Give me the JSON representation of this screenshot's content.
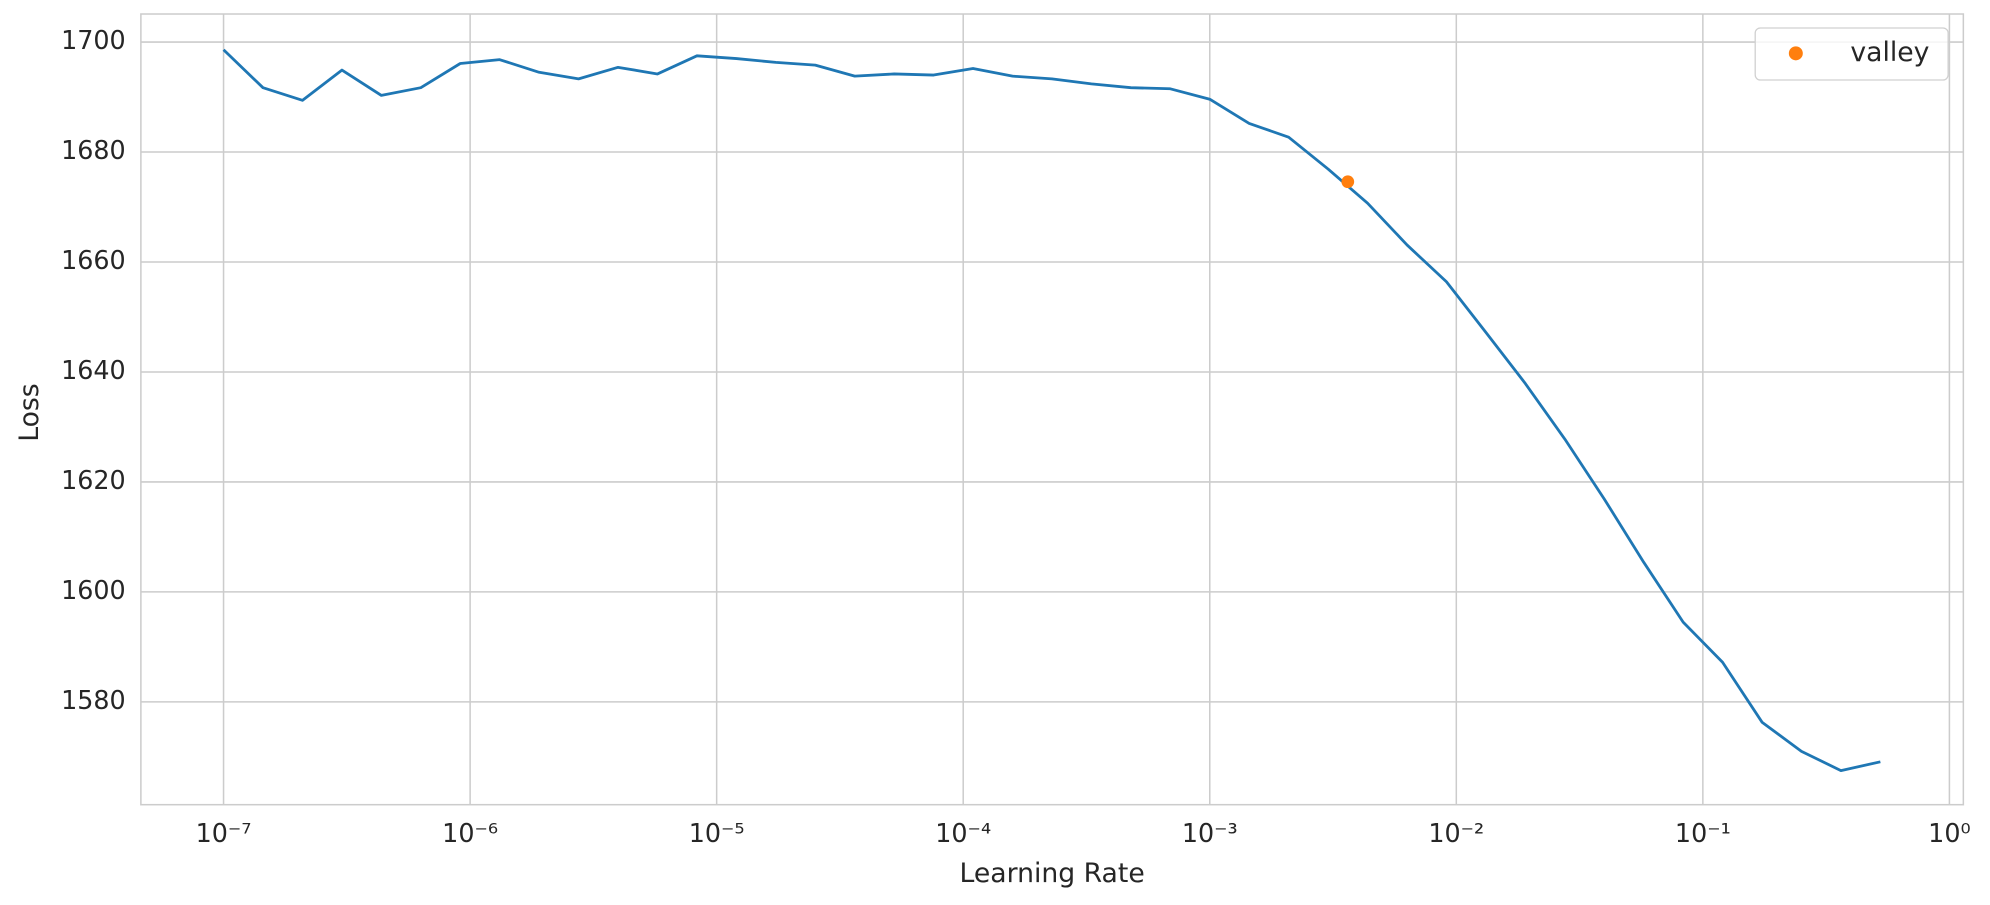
{
  "chart_data": {
    "type": "line",
    "xlabel": "Learning Rate",
    "ylabel": "Loss",
    "x": [
      1e-07,
      1.445e-07,
      2.089e-07,
      3.02e-07,
      4.365e-07,
      6.31e-07,
      9.12e-07,
      1.318e-06,
      1.905e-06,
      2.754e-06,
      3.981e-06,
      5.754e-06,
      8.318e-06,
      1.202e-05,
      1.738e-05,
      2.512e-05,
      3.631e-05,
      5.248e-05,
      7.586e-05,
      0.0001096,
      0.0001585,
      0.0002291,
      0.0003311,
      0.0004786,
      0.0006918,
      0.001,
      0.001445,
      0.002089,
      0.00302,
      0.004365,
      0.00631,
      0.00912,
      0.01318,
      0.01905,
      0.02754,
      0.03981,
      0.05754,
      0.08318,
      0.1202,
      0.1738,
      0.2512,
      0.3631,
      0.5248
    ],
    "series": [
      {
        "color": "#1f77b4",
        "values": [
          1698.6,
          1691.7,
          1689.4,
          1694.9,
          1690.3,
          1691.7,
          1696.1,
          1696.8,
          1694.5,
          1693.3,
          1695.4,
          1694.2,
          1697.5,
          1697.0,
          1696.3,
          1695.8,
          1693.8,
          1694.2,
          1694.0,
          1695.2,
          1693.8,
          1693.3,
          1692.4,
          1691.7,
          1691.5,
          1689.6,
          1685.2,
          1682.7,
          1676.9,
          1670.7,
          1663.1,
          1656.4,
          1647.2,
          1637.9,
          1627.8,
          1616.9,
          1605.4,
          1594.5,
          1587.2,
          1576.3,
          1571.0,
          1567.5,
          1569.1
        ]
      },
      {
        "name": "valley",
        "color": "#ff7f0e",
        "marker": "o",
        "x": [
          0.00363
        ],
        "values": [
          1674.6
        ]
      }
    ],
    "xscale": "log",
    "xlim": [
      4.62e-08,
      1.139
    ],
    "ylim": [
      1561.3,
      1705.1
    ],
    "xticks": [
      {
        "value": 1e-07,
        "label": "10⁻⁷"
      },
      {
        "value": 1e-06,
        "label": "10⁻⁶"
      },
      {
        "value": 1e-05,
        "label": "10⁻⁵"
      },
      {
        "value": 0.0001,
        "label": "10⁻⁴"
      },
      {
        "value": 0.001,
        "label": "10⁻³"
      },
      {
        "value": 0.01,
        "label": "10⁻²"
      },
      {
        "value": 0.1,
        "label": "10⁻¹"
      },
      {
        "value": 1,
        "label": "10⁰"
      }
    ],
    "yticks": [
      1580,
      1600,
      1620,
      1640,
      1660,
      1680,
      1700
    ],
    "grid": true,
    "legend": "upper right"
  }
}
